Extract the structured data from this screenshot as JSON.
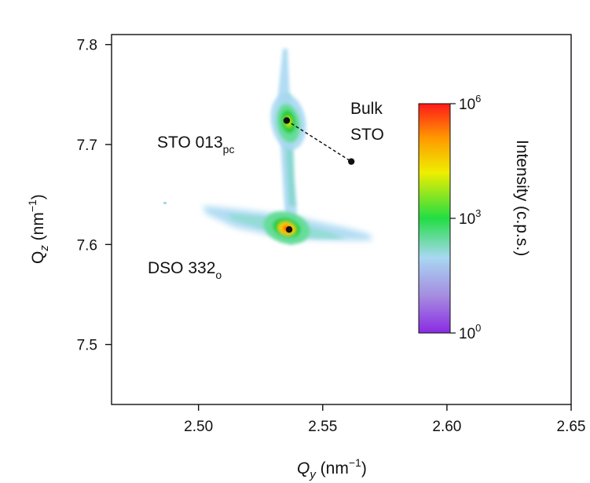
{
  "chart_data": {
    "type": "heatmap",
    "xlabel": {
      "base": "Q",
      "sub": "y",
      "unit": " (nm",
      "sup": "−1",
      "close": ")"
    },
    "ylabel": {
      "base": "Q",
      "sub": "z",
      "unit": " (nm",
      "sup": "−1",
      "close": ")"
    },
    "xlim": [
      2.465,
      2.65
    ],
    "ylim": [
      7.44,
      7.81
    ],
    "xticks": [
      {
        "value": 2.5,
        "label": "2.50"
      },
      {
        "value": 2.55,
        "label": "2.55"
      },
      {
        "value": 2.6,
        "label": "2.60"
      },
      {
        "value": 2.65,
        "label": "2.65"
      }
    ],
    "yticks": [
      {
        "value": 7.5,
        "label": "7.5"
      },
      {
        "value": 7.6,
        "label": "7.6"
      },
      {
        "value": 7.7,
        "label": "7.7"
      },
      {
        "value": 7.8,
        "label": "7.8"
      }
    ],
    "points": [
      {
        "name": "STO 013pc peak",
        "x": 2.5355,
        "y": 7.724
      },
      {
        "name": "Bulk STO",
        "x": 2.5615,
        "y": 7.683
      },
      {
        "name": "DSO 332o peak",
        "x": 2.5365,
        "y": 7.615
      }
    ],
    "annotations": [
      {
        "text": "STO 013",
        "sub": "pc"
      },
      {
        "text": "DSO 332",
        "sub": "o"
      },
      {
        "lines": [
          "Bulk",
          "STO"
        ]
      }
    ],
    "colorbar": {
      "label": "Intensity (c.p.s.)",
      "scale": "log",
      "ticks": [
        {
          "base": "10",
          "exp": "0"
        },
        {
          "base": "10",
          "exp": "3"
        },
        {
          "base": "10",
          "exp": "6"
        }
      ],
      "colors": [
        "#8a2be2",
        "#a58be0",
        "#a8d8f2",
        "#22dd44",
        "#eeee00",
        "#ff9900",
        "#ff1a1a"
      ]
    }
  }
}
